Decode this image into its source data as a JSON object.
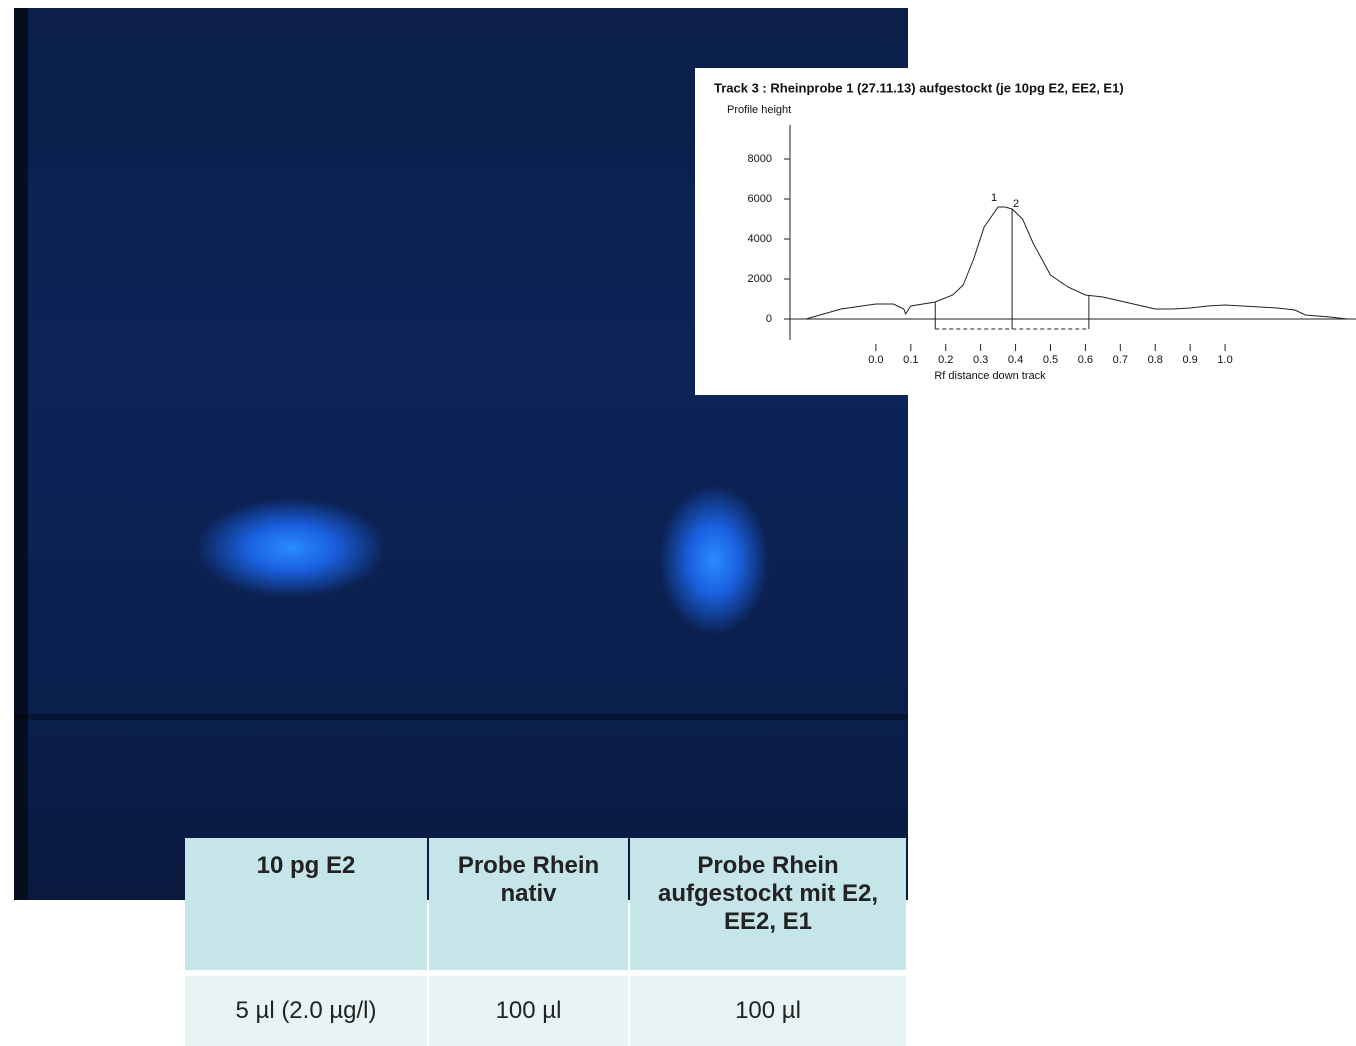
{
  "chart_data": {
    "type": "line",
    "title": "Track 3  : Rheinprobe 1 (27.11.13) aufgestockt (je 10pg E2, EE2, E1)",
    "y_label": "Profile height",
    "x_label": "Rf distance down track",
    "x": [
      -0.2,
      -0.1,
      0.0,
      0.05,
      0.08,
      0.085,
      0.1,
      0.17,
      0.22,
      0.25,
      0.28,
      0.31,
      0.35,
      0.37,
      0.39,
      0.42,
      0.45,
      0.5,
      0.55,
      0.6,
      0.65,
      0.7,
      0.75,
      0.8,
      0.85,
      0.9,
      0.95,
      1.0,
      1.05,
      1.1,
      1.15,
      1.2,
      1.23,
      1.3,
      1.35
    ],
    "series": [
      {
        "color": "#222222",
        "values": [
          0,
          500,
          750,
          750,
          500,
          250,
          650,
          850,
          1200,
          1700,
          3000,
          4600,
          5600,
          5600,
          5500,
          5000,
          3800,
          2200,
          1600,
          1200,
          1100,
          900,
          700,
          500,
          500,
          550,
          650,
          700,
          650,
          600,
          550,
          450,
          200,
          100,
          0
        ]
      }
    ],
    "peaks": [
      {
        "label": "1",
        "x": 0.35,
        "y": 5600
      },
      {
        "label": "2",
        "x": 0.39,
        "y": 5500
      }
    ],
    "boundaries": [
      0.17,
      0.39,
      0.61
    ],
    "xlim": [
      -0.246,
      1.375
    ],
    "ylim": [
      -1050,
      9700
    ],
    "xticks": [
      {
        "value": 0,
        "label": "0.0"
      },
      0.1,
      0.2,
      0.3,
      0.4,
      0.5,
      0.6,
      0.7,
      0.8,
      0.9,
      {
        "value": 1,
        "label": "1.0"
      }
    ],
    "yticks": [
      0,
      2000,
      4000,
      6000,
      8000
    ]
  },
  "table": {
    "header": [
      "10 pg E2",
      "Probe Rhein nativ",
      "Probe Rhein aufgestockt mit E2, EE2, E1"
    ],
    "rows": [
      [
        "5 µl (2.0 µg/l)",
        "100 µl",
        "100 µl"
      ]
    ]
  }
}
